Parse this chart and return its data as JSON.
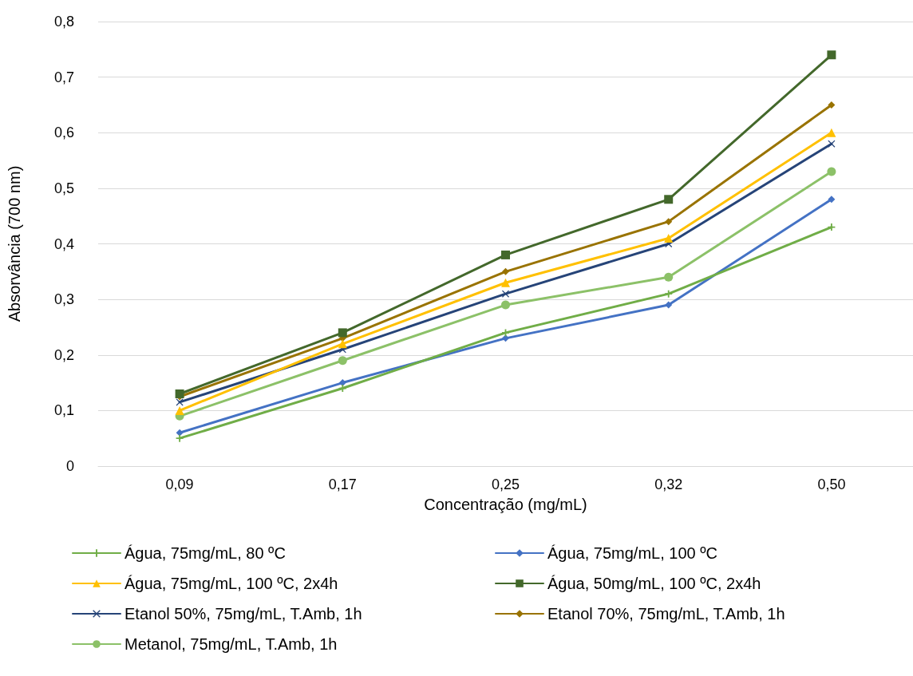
{
  "chart_data": {
    "type": "line",
    "xlabel": "Concentração (mg/mL)",
    "ylabel": "Absorvância (700 nm)",
    "categories": [
      "0,09",
      "0,17",
      "0,25",
      "0,32",
      "0,50"
    ],
    "ylim": [
      0,
      0.8
    ],
    "yticks": [
      0,
      {
        "value": 0.1,
        "label": "0,1"
      },
      {
        "value": 0.2,
        "label": "0,2"
      },
      {
        "value": 0.3,
        "label": "0,3"
      },
      {
        "value": 0.4,
        "label": "0,4"
      },
      {
        "value": 0.5,
        "label": "0,5"
      },
      {
        "value": 0.6,
        "label": "0,6"
      },
      {
        "value": 0.7,
        "label": "0,7"
      },
      {
        "value": 0.8,
        "label": "0,8"
      }
    ],
    "grid": "y",
    "legend": "bottom",
    "series": [
      {
        "name": "Água, 75mg/mL, 80 ºC",
        "color": "#70ad47",
        "marker": "plus",
        "values": [
          0.05,
          0.14,
          0.24,
          0.31,
          0.43
        ]
      },
      {
        "name": "Água, 75mg/mL, 100 ºC",
        "color": "#4472c4",
        "marker": "diamond",
        "values": [
          0.06,
          0.15,
          0.23,
          0.29,
          0.48
        ]
      },
      {
        "name": "Água, 75mg/mL, 100 ºC, 2x4h",
        "color": "#ffc000",
        "marker": "triangle",
        "values": [
          0.1,
          0.22,
          0.33,
          0.41,
          0.6
        ]
      },
      {
        "name": "Água, 50mg/mL, 100 ºC, 2x4h",
        "color": "#43682b",
        "marker": "square",
        "values": [
          0.13,
          0.24,
          0.38,
          0.48,
          0.74
        ]
      },
      {
        "name": "Etanol 50%, 75mg/mL, T.Amb, 1h",
        "color": "#264478",
        "marker": "cross",
        "values": [
          0.115,
          0.21,
          0.31,
          0.4,
          0.58
        ]
      },
      {
        "name": "Etanol 70%, 75mg/mL, T.Amb, 1h",
        "color": "#997300",
        "marker": "diamond",
        "values": [
          0.125,
          0.23,
          0.35,
          0.44,
          0.65
        ]
      },
      {
        "name": "Metanol, 75mg/mL, T.Amb, 1h",
        "color": "#8cc168",
        "marker": "circle",
        "values": [
          0.09,
          0.19,
          0.29,
          0.34,
          0.53
        ]
      }
    ]
  }
}
